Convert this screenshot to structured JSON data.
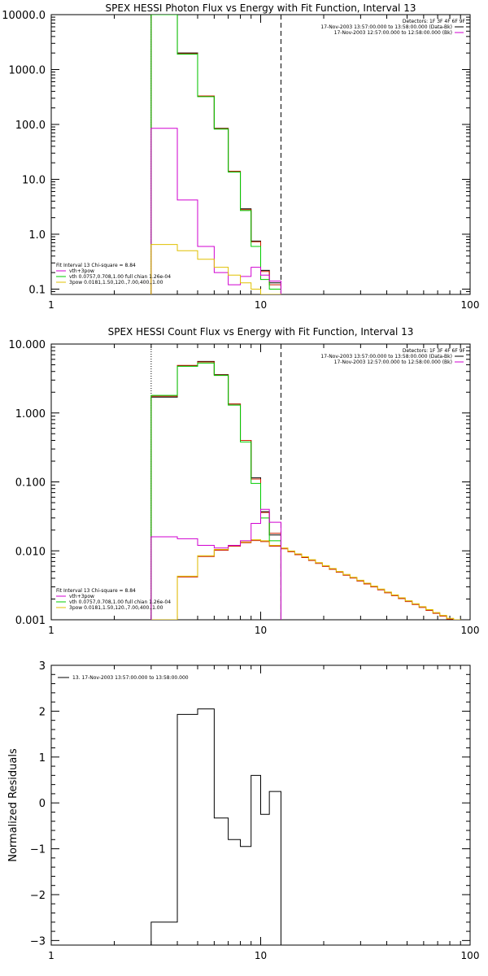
{
  "chart_data": [
    {
      "type": "line",
      "title": "SPEX HESSI Photon Flux vs Energy with Fit Function, Interval 13",
      "xscale": "log",
      "yscale": "log",
      "xlim": [
        1,
        100
      ],
      "ylim": [
        0.08,
        10000
      ],
      "x_ticks": [
        1,
        10,
        100
      ],
      "x_tick_labels": [
        "1",
        "10",
        "100"
      ],
      "y_ticks": [
        0.1,
        1,
        10,
        100,
        1000,
        10000
      ],
      "y_tick_labels": [
        "0.1",
        "1.0",
        "10.0",
        "100.0",
        "1000.0",
        "10000.0"
      ],
      "xlabel": "",
      "ylabel": "",
      "detectors_label": "Detectors: 1F 3F 4F 6F 9F",
      "legend_top": [
        {
          "text": "17-Nov-2003 13:57:00.000 to 13:58:00.000 (Data-Bk)",
          "color": "#000000"
        },
        {
          "text": "17-Nov-2003 12:57:00.000 to 12:58:00.000 (Bk)",
          "color": "#d000d0"
        }
      ],
      "legend_bottom": [
        {
          "text": "Fit Interval 13   Chi-square = 8.84",
          "color": null
        },
        {
          "text": "vth+3pow",
          "color": "#d000d0"
        },
        {
          "text": "vth 0.0757,0.708,1.00  full chian 1.26e-04",
          "color": "#00cc00"
        },
        {
          "text": "3pow 0.0181,1.50,120.,7.00,400.,1.00",
          "color": "#e0c000"
        }
      ],
      "vlines": [
        {
          "x": 3.0,
          "style": "dotted",
          "color": "#000000"
        },
        {
          "x": 12.5,
          "style": "dashed",
          "color": "#000000"
        }
      ],
      "edges": [
        3.0,
        4.0,
        5.0,
        6.0,
        7.0,
        8.0,
        9.0,
        10.0,
        11.0,
        12.5
      ],
      "series": [
        {
          "color": "#000000",
          "values": [
            10000,
            2000,
            330,
            85,
            14,
            2.9,
            0.75,
            0.22,
            0.13
          ]
        },
        {
          "color": "#cc2200",
          "values": [
            10000,
            1950,
            330,
            84,
            14,
            2.8,
            0.73,
            0.21,
            0.12
          ]
        },
        {
          "color": "#00cc00",
          "values": [
            10000,
            1900,
            320,
            82,
            13.5,
            2.7,
            0.6,
            0.15,
            0.1
          ]
        },
        {
          "color": "#d000d0",
          "values": [
            85,
            4.2,
            0.6,
            0.2,
            0.12,
            0.17,
            0.25,
            0.18,
            0.14
          ]
        },
        {
          "color": "#e0c000",
          "values": [
            0.65,
            0.5,
            0.35,
            0.25,
            0.18,
            0.13,
            0.1,
            0.08,
            0.08
          ]
        }
      ]
    },
    {
      "type": "line",
      "title": "SPEX HESSI Count Flux vs Energy with Fit Function, Interval 13",
      "xscale": "log",
      "yscale": "log",
      "xlim": [
        1,
        100
      ],
      "ylim": [
        0.001,
        10
      ],
      "x_ticks": [
        1,
        10,
        100
      ],
      "x_tick_labels": [
        "1",
        "10",
        "100"
      ],
      "y_ticks": [
        0.001,
        0.01,
        0.1,
        1,
        10
      ],
      "y_tick_labels": [
        "0.001",
        "0.010",
        "0.100",
        "1.000",
        "10.000"
      ],
      "xlabel": "",
      "ylabel": "",
      "detectors_label": "Detectors: 1F 3F 4F 6F 9F",
      "legend_top": [
        {
          "text": "17-Nov-2003 13:57:00.000 to 13:58:00.000 (Data-Bk)",
          "color": "#000000"
        },
        {
          "text": "17-Nov-2003 12:57:00.000 to 12:58:00.000 (Bk)",
          "color": "#d000d0"
        }
      ],
      "legend_bottom": [
        {
          "text": "Fit Interval 13   Chi-square = 8.84",
          "color": null
        },
        {
          "text": "vth+3pow",
          "color": "#d000d0"
        },
        {
          "text": "vth 0.0757,0.708,1.00  full chian 1.26e-04",
          "color": "#00cc00"
        },
        {
          "text": "3pow 0.0181,1.50,120.,7.00,400.,1.00",
          "color": "#e0c000"
        }
      ],
      "vlines": [
        {
          "x": 3.0,
          "style": "dotted",
          "color": "#000000"
        },
        {
          "x": 12.5,
          "style": "dashed",
          "color": "#000000"
        }
      ],
      "edges": [
        3.0,
        4.0,
        5.0,
        6.0,
        7.0,
        8.0,
        9.0,
        10.0,
        11.0,
        12.5
      ],
      "series": [
        {
          "color": "#000000",
          "values": [
            1.7,
            4.8,
            5.6,
            3.6,
            1.35,
            0.4,
            0.115,
            0.037,
            0.017
          ]
        },
        {
          "color": "#cc2200",
          "values": [
            1.75,
            4.9,
            5.5,
            3.55,
            1.35,
            0.4,
            0.11,
            0.036,
            0.018
          ]
        },
        {
          "color": "#00cc00",
          "values": [
            1.8,
            4.75,
            5.3,
            3.5,
            1.3,
            0.38,
            0.095,
            0.03,
            0.014
          ]
        },
        {
          "color": "#d000d0",
          "values": [
            0.016,
            0.015,
            0.012,
            0.011,
            0.012,
            0.014,
            0.025,
            0.04,
            0.026
          ]
        }
      ],
      "tail": {
        "colors": [
          "#e0c000",
          "#cc2200"
        ],
        "start": 12.5,
        "end": 90,
        "bins": 26,
        "start_value": 0.011,
        "end_value": 0.00095,
        "base_values_from_x": [
          3.0,
          4.0,
          5.0,
          6.0,
          7.0,
          8.0,
          9.0,
          10.0,
          11.0
        ],
        "base_values": [
          0.001,
          0.0043,
          0.0085,
          0.0105,
          0.012,
          0.0135,
          0.0145,
          0.014,
          0.012
        ]
      }
    },
    {
      "type": "line",
      "title": "",
      "xscale": "log",
      "yscale": "linear",
      "xlim": [
        1,
        100
      ],
      "ylim": [
        -3.1,
        3
      ],
      "x_ticks": [
        1,
        10,
        100
      ],
      "x_tick_labels": [
        "1",
        "10",
        "100"
      ],
      "y_ticks": [
        -3,
        -2,
        -1,
        0,
        1,
        2,
        3
      ],
      "y_tick_labels": [
        "−3",
        "−2",
        "−1",
        "0",
        "1",
        "2",
        "3"
      ],
      "xlabel": "",
      "ylabel": "Normalized Residuals",
      "legend_top": [
        {
          "text": "13. 17-Nov-2003 13:57:00.000 to 13:58:00.000",
          "color": "#000000"
        }
      ],
      "edges": [
        3.0,
        4.0,
        5.0,
        6.0,
        7.0,
        8.0,
        9.0,
        10.0,
        11.0,
        12.5
      ],
      "series": [
        {
          "color": "#000000",
          "values": [
            -2.6,
            1.93,
            2.05,
            -0.33,
            -0.8,
            -0.95,
            0.6,
            -0.25,
            0.25
          ]
        }
      ]
    }
  ]
}
